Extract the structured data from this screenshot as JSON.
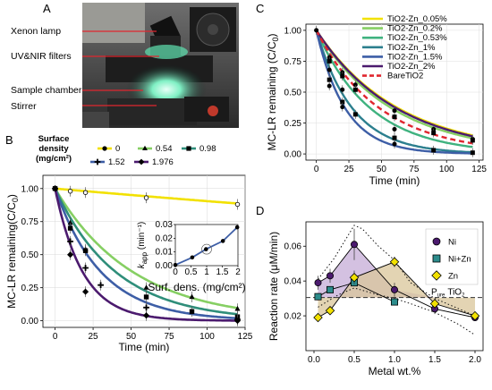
{
  "panel_labels": {
    "a": "A",
    "b": "B",
    "c": "C",
    "d": "D"
  },
  "photo": {
    "labels": [
      "Xenon lamp",
      "UV&NIR filters",
      "Sample chamber",
      "Stirrer"
    ]
  },
  "colors": {
    "yellow": "#f2e100",
    "light_green": "#86cf63",
    "green": "#3fb27f",
    "teal": "#2c7f8e",
    "blue": "#3d5ea6",
    "purple": "#4b1a6e",
    "red": "#e0262f",
    "fill_purple": "#cdb6dc",
    "fill_tan": "#d9c59a",
    "dashed_gray": "#6f6f6f"
  },
  "chart_data": [
    {
      "id": "B",
      "type": "line",
      "xlabel": "Time (min)",
      "ylabel": "MC-LR remaining(C/C",
      "ylabel_sub": "0",
      "ylabel_close": ")",
      "xlim": [
        -8,
        125
      ],
      "ylim": [
        -0.05,
        1.1
      ],
      "xticks": [
        0,
        25,
        50,
        75,
        100,
        125
      ],
      "yticks": [
        0.0,
        0.25,
        0.5,
        0.75,
        1.0
      ],
      "ytick_labels": [
        "0.00",
        "0.25",
        "0.50",
        "0.75",
        "1.00"
      ],
      "legend_title": [
        "Surface",
        "density",
        "(mg/cm²)"
      ],
      "series": [
        {
          "name": "0",
          "color": "#f2e100",
          "marker": "circle",
          "x": [
            0,
            10,
            20,
            60,
            120
          ],
          "y": [
            1.0,
            0.98,
            0.97,
            0.93,
            0.88
          ],
          "k": 0.001
        },
        {
          "name": "0.54",
          "color": "#86cf63",
          "marker": "triangle",
          "x": [
            0,
            10,
            20,
            60,
            90,
            120
          ],
          "y": [
            1.0,
            0.74,
            0.54,
            0.25,
            0.18,
            0.09
          ],
          "k": 0.0195
        },
        {
          "name": "0.98",
          "color": "#2f8e7a",
          "marker": "square",
          "x": [
            0,
            10,
            20,
            60,
            90,
            120
          ],
          "y": [
            1.0,
            0.7,
            0.53,
            0.18,
            0.07,
            0.03
          ],
          "k": 0.025
        },
        {
          "name": "1.52",
          "color": "#3d5ea6",
          "marker": "plus",
          "x": [
            0,
            10,
            20,
            30,
            60,
            120
          ],
          "y": [
            1.0,
            0.6,
            0.4,
            0.27,
            0.1,
            0.01
          ],
          "k": 0.033
        },
        {
          "name": "1.976",
          "color": "#4b1a6e",
          "marker": "diamond",
          "x": [
            0,
            10,
            20,
            60,
            120
          ],
          "y": [
            1.0,
            0.5,
            0.22,
            0.04,
            0.0
          ],
          "k": 0.055
        }
      ],
      "inset": {
        "xlabel": "Surf. dens. (mg/cm²)",
        "ylabel": "k",
        "ylabel_sub": "app",
        "ylabel_unit": " (min⁻¹)",
        "xlim": [
          0,
          2
        ],
        "ylim": [
          0,
          0.03
        ],
        "xticks": [
          0,
          0.5,
          1,
          1.5,
          2
        ],
        "xtick_labels": [
          "0",
          "0.5",
          "1",
          "1.5",
          "2"
        ],
        "yticks": [
          0,
          0.01,
          0.02,
          0.03
        ],
        "ytick_labels": [
          "0.00",
          "0.01",
          "0.02",
          "0.03"
        ],
        "x": [
          0,
          0.54,
          0.98,
          1.52,
          1.976
        ],
        "y": [
          0.0005,
          0.006,
          0.012,
          0.018,
          0.028
        ]
      }
    },
    {
      "id": "C",
      "type": "line",
      "xlabel": "Time (min)",
      "ylabel": "MC-LR remaining (C/C",
      "ylabel_sub": "0",
      "ylabel_close": ")",
      "xlim": [
        -8,
        128
      ],
      "ylim": [
        -0.05,
        1.05
      ],
      "xticks": [
        0,
        25,
        50,
        75,
        100,
        125
      ],
      "yticks": [
        0.0,
        0.25,
        0.5,
        0.75,
        1.0
      ],
      "ytick_labels": [
        "0.00",
        "0.25",
        "0.50",
        "0.75",
        "1.00"
      ],
      "series": [
        {
          "name": "TiO2-Zn_0.05%",
          "color": "#f2e100",
          "dash": false,
          "k": 0.0158,
          "pts_x": [
            0,
            10,
            20,
            30,
            60,
            90,
            120
          ],
          "pts_y": [
            1.0,
            0.78,
            0.66,
            0.56,
            0.35,
            0.2,
            0.12
          ]
        },
        {
          "name": "TiO2-Zn_0.2%",
          "color": "#86cf63",
          "dash": false,
          "k": 0.0172,
          "pts_x": [],
          "pts_y": []
        },
        {
          "name": "TiO2-Zn_0.53%",
          "color": "#3fb27f",
          "dash": false,
          "k": 0.024,
          "pts_x": [
            10,
            20,
            60
          ],
          "pts_y": [
            0.68,
            0.52,
            0.2
          ]
        },
        {
          "name": "TiO2-Zn_1%",
          "color": "#2c7f8e",
          "dash": false,
          "k": 0.036,
          "pts_x": [
            10,
            20,
            30,
            60,
            90,
            120
          ],
          "pts_y": [
            0.6,
            0.42,
            0.32,
            0.13,
            0.03,
            0.01
          ]
        },
        {
          "name": "TiO2-Zn_1.5%",
          "color": "#3d5ea6",
          "dash": false,
          "k": 0.045,
          "pts_x": [
            10,
            20,
            60
          ],
          "pts_y": [
            0.55,
            0.38,
            0.08
          ]
        },
        {
          "name": "TiO2-Zn_2%",
          "color": "#4b1a6e",
          "dash": false,
          "k": 0.0162,
          "pts_x": [
            10,
            20,
            30,
            60,
            90,
            120
          ],
          "pts_y": [
            0.75,
            0.63,
            0.52,
            0.3,
            0.17,
            0.11
          ]
        },
        {
          "name": "BareTiO2",
          "color": "#e0262f",
          "dash": true,
          "k": 0.0205,
          "pts_x": [],
          "pts_y": []
        }
      ]
    },
    {
      "id": "D",
      "type": "line",
      "xlabel": "Metal wt.%",
      "ylabel": "Reaction rate (μM/min)",
      "xlim": [
        -0.1,
        2.1
      ],
      "ylim": [
        0.0,
        0.074
      ],
      "xticks": [
        0.0,
        0.5,
        1.0,
        1.5,
        2.0
      ],
      "xtick_labels": [
        "0.0",
        "0.5",
        "1.0",
        "1.5",
        "2.0"
      ],
      "yticks": [
        0.02,
        0.04,
        0.06
      ],
      "ytick_labels": [
        "0.02",
        "0.04",
        "0.06"
      ],
      "reference": {
        "label": "P",
        "label_sub": "ure",
        "label_tail": "TiO",
        "label_tail_sub": "2",
        "y": 0.0305
      },
      "series": [
        {
          "name": "Ni",
          "color": "#4b1a6e",
          "marker": "circle",
          "x": [
            0.05,
            0.2,
            0.5,
            1.0,
            1.5,
            2.0
          ],
          "y": [
            0.039,
            0.043,
            0.061,
            0.035,
            0.024,
            0.019
          ],
          "err": [
            0.004,
            0.004,
            0.009,
            0.004,
            0.003,
            0.002
          ]
        },
        {
          "name": "Ni+Zn",
          "color": "#2c8c8c",
          "marker": "square",
          "x": [
            0.05,
            0.2,
            0.5,
            1.0
          ],
          "y": [
            0.031,
            0.035,
            0.039,
            0.028
          ],
          "err": [
            0.002,
            0.002,
            0.002,
            0.002
          ]
        },
        {
          "name": "Zn",
          "color": "#f2e100",
          "marker": "diamond",
          "x": [
            0.05,
            0.2,
            0.5,
            1.0,
            1.5,
            2.0
          ],
          "y": [
            0.019,
            0.023,
            0.042,
            0.051,
            0.027,
            0.02
          ],
          "err": [
            0.002,
            0.002,
            0.004,
            0.003,
            0.003,
            0.002
          ]
        }
      ],
      "envelope_upper": {
        "x": [
          0.05,
          0.25,
          0.5,
          0.6,
          0.8,
          1.0,
          1.2,
          1.5,
          2.0
        ],
        "y": [
          0.041,
          0.053,
          0.072,
          0.07,
          0.06,
          0.052,
          0.039,
          0.03,
          0.02
        ]
      },
      "envelope_lower": {
        "x": [
          0.05,
          0.3,
          0.5,
          0.8,
          1.0,
          1.2,
          1.5,
          1.8,
          2.0
        ],
        "y": [
          0.025,
          0.032,
          0.036,
          0.032,
          0.03,
          0.027,
          0.022,
          0.015,
          0.009
        ]
      }
    }
  ]
}
